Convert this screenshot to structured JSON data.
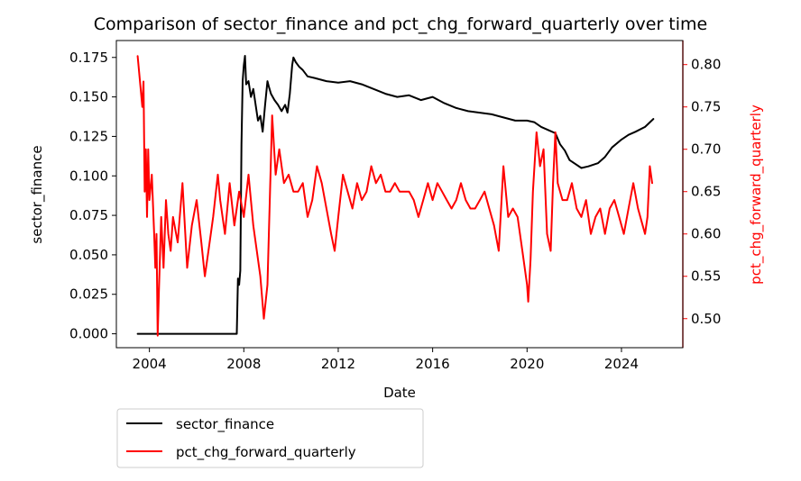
{
  "chart_data": {
    "type": "line",
    "title": "Comparison of sector_finance and pct_chg_forward_quarterly over time",
    "xlabel": "Date",
    "ylabel_left": "sector_finance",
    "ylabel_right": "pct_chg_forward_quarterly",
    "x_ticks": [
      "2004",
      "2008",
      "2012",
      "2016",
      "2020",
      "2024"
    ],
    "x_tick_years": [
      2004,
      2008,
      2012,
      2016,
      2020,
      2024
    ],
    "xlim": [
      2002.6,
      2026.6
    ],
    "y_left_ticks": [
      "0.000",
      "0.025",
      "0.050",
      "0.075",
      "0.100",
      "0.125",
      "0.150",
      "0.175"
    ],
    "y_left_tick_values": [
      0,
      0.025,
      0.05,
      0.075,
      0.1,
      0.125,
      0.15,
      0.175
    ],
    "ylim_left": [
      -0.0088,
      0.1857
    ],
    "y_right_ticks": [
      "0.50",
      "0.55",
      "0.60",
      "0.65",
      "0.70",
      "0.75",
      "0.80"
    ],
    "y_right_tick_values": [
      0.5,
      0.55,
      0.6,
      0.65,
      0.7,
      0.75,
      0.8
    ],
    "ylim_right": [
      0.4657,
      0.8284
    ],
    "grid": false,
    "legend_position": "below-left",
    "colors": {
      "left": "#000000",
      "right": "#ff0000"
    },
    "series": [
      {
        "name": "sector_finance",
        "axis": "left",
        "color": "#000000",
        "x": [
          2003.5,
          2004.0,
          2005.0,
          2006.0,
          2007.0,
          2007.7,
          2007.75,
          2007.8,
          2007.85,
          2007.9,
          2007.95,
          2008.0,
          2008.05,
          2008.1,
          2008.2,
          2008.3,
          2008.4,
          2008.5,
          2008.6,
          2008.7,
          2008.8,
          2008.9,
          2009.0,
          2009.05,
          2009.15,
          2009.3,
          2009.45,
          2009.6,
          2009.75,
          2009.85,
          2009.95,
          2010.05,
          2010.1,
          2010.2,
          2010.35,
          2010.5,
          2010.7,
          2011.0,
          2011.5,
          2012.0,
          2012.5,
          2013.0,
          2013.5,
          2014.0,
          2014.5,
          2015.0,
          2015.5,
          2016.0,
          2016.5,
          2017.0,
          2017.5,
          2018.0,
          2018.5,
          2019.0,
          2019.5,
          2020.0,
          2020.3,
          2020.6,
          2020.9,
          2021.2,
          2021.4,
          2021.6,
          2021.8,
          2022.0,
          2022.3,
          2022.6,
          2023.0,
          2023.3,
          2023.6,
          2024.0,
          2024.3,
          2024.6,
          2025.0,
          2025.35
        ],
        "y": [
          0.0,
          0.0,
          0.0,
          0.0,
          0.0,
          0.0,
          0.035,
          0.031,
          0.04,
          0.12,
          0.16,
          0.17,
          0.176,
          0.158,
          0.16,
          0.15,
          0.155,
          0.145,
          0.135,
          0.138,
          0.128,
          0.145,
          0.16,
          0.157,
          0.152,
          0.148,
          0.145,
          0.141,
          0.145,
          0.14,
          0.152,
          0.17,
          0.175,
          0.172,
          0.169,
          0.167,
          0.163,
          0.162,
          0.16,
          0.159,
          0.16,
          0.158,
          0.155,
          0.152,
          0.15,
          0.151,
          0.148,
          0.15,
          0.146,
          0.143,
          0.141,
          0.14,
          0.139,
          0.137,
          0.135,
          0.135,
          0.134,
          0.131,
          0.129,
          0.127,
          0.12,
          0.116,
          0.11,
          0.108,
          0.105,
          0.106,
          0.108,
          0.112,
          0.118,
          0.123,
          0.126,
          0.128,
          0.131,
          0.136
        ]
      },
      {
        "name": "pct_chg_forward_quarterly",
        "axis": "right",
        "color": "#ff0000",
        "x": [
          2003.5,
          2003.6,
          2003.7,
          2003.75,
          2003.8,
          2003.85,
          2003.9,
          2003.95,
          2004.0,
          2004.1,
          2004.2,
          2004.25,
          2004.3,
          2004.35,
          2004.4,
          2004.5,
          2004.6,
          2004.7,
          2004.8,
          2004.9,
          2005.0,
          2005.2,
          2005.4,
          2005.6,
          2005.8,
          2006.0,
          2006.2,
          2006.35,
          2006.5,
          2006.7,
          2006.9,
          2007.0,
          2007.2,
          2007.4,
          2007.6,
          2007.8,
          2008.0,
          2008.2,
          2008.4,
          2008.55,
          2008.7,
          2008.85,
          2009.0,
          2009.1,
          2009.2,
          2009.35,
          2009.5,
          2009.7,
          2009.9,
          2010.1,
          2010.3,
          2010.5,
          2010.7,
          2010.9,
          2011.1,
          2011.3,
          2011.5,
          2011.7,
          2011.85,
          2012.0,
          2012.2,
          2012.4,
          2012.6,
          2012.8,
          2013.0,
          2013.2,
          2013.4,
          2013.6,
          2013.8,
          2014.0,
          2014.2,
          2014.4,
          2014.6,
          2014.8,
          2015.0,
          2015.2,
          2015.4,
          2015.6,
          2015.8,
          2016.0,
          2016.2,
          2016.4,
          2016.6,
          2016.8,
          2017.0,
          2017.2,
          2017.4,
          2017.6,
          2017.8,
          2018.0,
          2018.2,
          2018.4,
          2018.6,
          2018.8,
          2019.0,
          2019.2,
          2019.4,
          2019.6,
          2019.8,
          2020.0,
          2020.05,
          2020.15,
          2020.25,
          2020.4,
          2020.55,
          2020.7,
          2020.85,
          2021.0,
          2021.1,
          2021.2,
          2021.3,
          2021.5,
          2021.7,
          2021.9,
          2022.1,
          2022.3,
          2022.5,
          2022.7,
          2022.9,
          2023.1,
          2023.3,
          2023.5,
          2023.7,
          2023.9,
          2024.1,
          2024.3,
          2024.5,
          2024.7,
          2024.9,
          2025.0,
          2025.1,
          2025.2,
          2025.3
        ],
        "y": [
          0.81,
          0.78,
          0.75,
          0.78,
          0.65,
          0.7,
          0.62,
          0.7,
          0.64,
          0.67,
          0.6,
          0.56,
          0.6,
          0.48,
          0.53,
          0.62,
          0.56,
          0.64,
          0.6,
          0.58,
          0.62,
          0.59,
          0.66,
          0.56,
          0.61,
          0.64,
          0.59,
          0.55,
          0.58,
          0.62,
          0.67,
          0.64,
          0.6,
          0.66,
          0.61,
          0.65,
          0.62,
          0.67,
          0.61,
          0.58,
          0.55,
          0.5,
          0.54,
          0.64,
          0.74,
          0.67,
          0.7,
          0.66,
          0.67,
          0.65,
          0.65,
          0.66,
          0.62,
          0.64,
          0.68,
          0.66,
          0.63,
          0.6,
          0.58,
          0.62,
          0.67,
          0.65,
          0.63,
          0.66,
          0.64,
          0.65,
          0.68,
          0.66,
          0.67,
          0.65,
          0.65,
          0.66,
          0.65,
          0.65,
          0.65,
          0.64,
          0.62,
          0.64,
          0.66,
          0.64,
          0.66,
          0.65,
          0.64,
          0.63,
          0.64,
          0.66,
          0.64,
          0.63,
          0.63,
          0.64,
          0.65,
          0.63,
          0.61,
          0.58,
          0.68,
          0.62,
          0.63,
          0.62,
          0.58,
          0.54,
          0.52,
          0.57,
          0.65,
          0.72,
          0.68,
          0.7,
          0.6,
          0.58,
          0.66,
          0.72,
          0.66,
          0.64,
          0.64,
          0.66,
          0.63,
          0.62,
          0.64,
          0.6,
          0.62,
          0.63,
          0.6,
          0.63,
          0.64,
          0.62,
          0.6,
          0.63,
          0.66,
          0.63,
          0.61,
          0.6,
          0.62,
          0.68,
          0.66
        ]
      }
    ]
  }
}
